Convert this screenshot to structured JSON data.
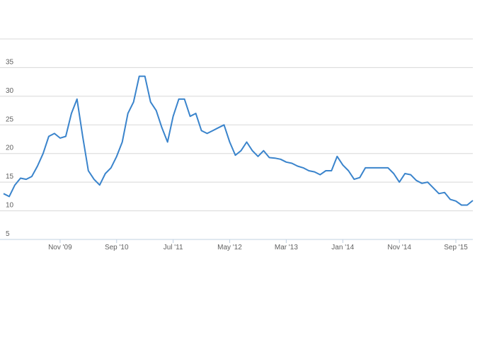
{
  "chart_data": {
    "type": "line",
    "categories": [
      null,
      null,
      null,
      null,
      null,
      null,
      null,
      null,
      null,
      null,
      "Nov '09",
      null,
      null,
      null,
      null,
      null,
      null,
      null,
      null,
      null,
      "Sep '10",
      null,
      null,
      null,
      null,
      null,
      null,
      null,
      null,
      null,
      "Jul '11",
      null,
      null,
      null,
      null,
      null,
      null,
      null,
      null,
      null,
      "May '12",
      null,
      null,
      null,
      null,
      null,
      null,
      null,
      null,
      null,
      "Mar '13",
      null,
      null,
      null,
      null,
      null,
      null,
      null,
      null,
      null,
      "Jan '14",
      null,
      null,
      null,
      null,
      null,
      null,
      null,
      null,
      null,
      "Nov '14",
      null,
      null,
      null,
      null,
      null,
      null,
      null,
      null,
      null,
      "Sep '15",
      null,
      null,
      null
    ],
    "series": [
      {
        "color": "#3a84cc",
        "values": [
          13,
          12.5,
          14.5,
          15.7,
          15.5,
          16,
          17.8,
          20,
          23,
          23.5,
          22.7,
          23,
          27,
          29.5,
          23,
          17,
          15.5,
          14.5,
          16.5,
          17.5,
          19.5,
          22,
          27,
          29,
          33.5,
          33.5,
          29,
          27.5,
          24.5,
          22,
          26.5,
          29.5,
          29.5,
          26.5,
          27,
          24,
          23.5,
          24,
          24.5,
          25,
          22,
          19.7,
          20.5,
          22,
          20.5,
          19.5,
          20.5,
          19.3,
          19.2,
          19,
          18.5,
          18.3,
          17.8,
          17.5,
          17,
          16.8,
          16.3,
          17,
          17,
          19.5,
          18,
          17,
          15.5,
          15.8,
          17.5,
          17.5,
          17.5,
          17.5,
          17.5,
          16.5,
          15,
          16.5,
          16.3,
          15.3,
          14.8,
          15,
          14,
          13,
          13.2,
          12,
          11.7,
          11,
          11,
          11.8
        ]
      }
    ],
    "ylim": [
      5,
      40
    ],
    "yticks": [
      5,
      10,
      15,
      20,
      25,
      30,
      35
    ],
    "grid": true
  }
}
